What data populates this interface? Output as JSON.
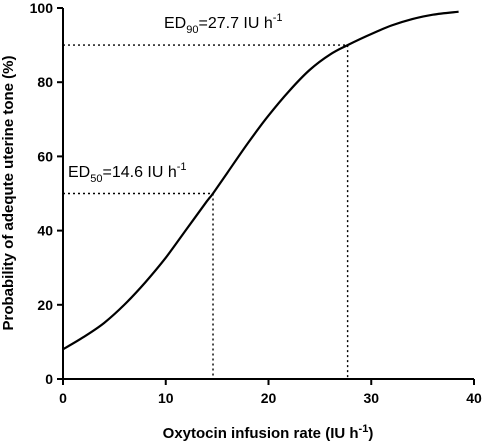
{
  "chart_data": {
    "type": "line",
    "xlabel": "Oxytocin infusion rate (IU h",
    "xlabel_sup": "-1",
    "xlabel_tail": ")",
    "ylabel": "Probability of adequte uterine tone (%)",
    "xlim": [
      0,
      40
    ],
    "ylim": [
      0,
      100
    ],
    "xticks": [
      0,
      10,
      20,
      30,
      40
    ],
    "yticks": [
      0,
      20,
      40,
      60,
      80,
      100
    ],
    "grid": false,
    "series": [
      {
        "x": [
          0,
          2,
          4,
          6,
          8,
          10,
          12,
          14,
          14.6,
          16,
          18,
          20,
          22,
          24,
          26,
          27.7,
          30,
          32,
          34,
          36,
          38.5
        ],
        "values": [
          8,
          11.3,
          15.1,
          20.1,
          26,
          32.7,
          40.3,
          47.9,
          50,
          55.6,
          63.6,
          71,
          77.6,
          83.3,
          87.5,
          90,
          93,
          95.3,
          97,
          98.2,
          99
        ]
      }
    ],
    "annotations": [
      {
        "x": 14.6,
        "y": 50,
        "label_main": "ED",
        "label_sub": "50",
        "label_rest": "=14.6 IU h",
        "label_sup": "-1"
      },
      {
        "x": 27.7,
        "y": 90,
        "label_main": "ED",
        "label_sub": "90",
        "label_rest": "=27.7 IU h",
        "label_sup": "-1"
      }
    ]
  }
}
